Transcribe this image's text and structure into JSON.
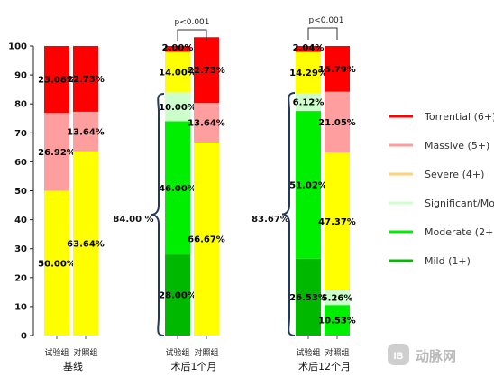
{
  "chart_data": {
    "type": "bar",
    "stacked": true,
    "ylim": [
      0,
      100
    ],
    "yticks": [
      0,
      10,
      20,
      30,
      40,
      50,
      60,
      70,
      80,
      90,
      100
    ],
    "groups": [
      {
        "label": "基线",
        "bars": [
          {
            "category": "试验组",
            "segments": [
              {
                "series": "Severe (4+)",
                "value": 50.0,
                "label": "50.00%"
              },
              {
                "series": "Massive (5+)",
                "value": 26.92,
                "label": "26.92%"
              },
              {
                "series": "Torrential (6+)",
                "value": 23.08,
                "label": "23.08%"
              }
            ]
          },
          {
            "category": "对照组",
            "segments": [
              {
                "series": "Severe (4+)",
                "value": 63.64,
                "label": "63.64%"
              },
              {
                "series": "Massive (5+)",
                "value": 13.64,
                "label": "13.64%"
              },
              {
                "series": "Torrential (6+)",
                "value": 22.73,
                "label": "22.73%"
              }
            ]
          }
        ]
      },
      {
        "label": "术后1个月",
        "p_value": "p<0.001",
        "brace_label": "84.00 %",
        "bars": [
          {
            "category": "试验组",
            "segments": [
              {
                "series": "Mild (1+)",
                "value": 28.0,
                "label": "28.00%"
              },
              {
                "series": "Moderate (2+)",
                "value": 46.0,
                "label": "46.00%"
              },
              {
                "series": "Significant/Moderate",
                "value": 10.0,
                "label": "10.00%"
              },
              {
                "series": "Severe (4+)",
                "value": 14.0,
                "label": "14.00%"
              },
              {
                "series": "Torrential (6+)",
                "value": 2.0,
                "label": "2.00%"
              }
            ]
          },
          {
            "category": "对照组",
            "segments": [
              {
                "series": "Severe (4+)",
                "value": 66.67,
                "label": "66.67%"
              },
              {
                "series": "Massive (5+)",
                "value": 13.64,
                "label": "13.64%"
              },
              {
                "series": "Torrential (6+)",
                "value": 22.73,
                "label": "22.73%"
              }
            ]
          }
        ]
      },
      {
        "label": "术后12个月",
        "p_value": "p<0.001",
        "brace_label": "83.67%",
        "bars": [
          {
            "category": "试验组",
            "segments": [
              {
                "series": "Mild (1+)",
                "value": 26.53,
                "label": "26.53%"
              },
              {
                "series": "Moderate (2+)",
                "value": 51.02,
                "label": "51.02%"
              },
              {
                "series": "Significant/Moderate",
                "value": 6.12,
                "label": "6.12%"
              },
              {
                "series": "Severe (4+)",
                "value": 14.29,
                "label": "14.29%"
              },
              {
                "series": "Torrential (6+)",
                "value": 2.04,
                "label": "2.04%"
              }
            ]
          },
          {
            "category": "对照组",
            "segments": [
              {
                "series": "Moderate (2+)",
                "value": 10.53,
                "label": "10.53%"
              },
              {
                "series": "Significant/Moderate",
                "value": 5.26,
                "label": "5.26%"
              },
              {
                "series": "Severe (4+)",
                "value": 47.37,
                "label": "47.37%"
              },
              {
                "series": "Massive (5+)",
                "value": 21.05,
                "label": "21.05%"
              },
              {
                "series": "Torrential (6+)",
                "value": 15.79,
                "label": "15.79%"
              }
            ]
          }
        ]
      }
    ],
    "legend": {
      "position": "right",
      "items": [
        {
          "name": "Torrential (6+)",
          "color": "#ff0000"
        },
        {
          "name": "Massive (5+)",
          "color": "#ff9c9c"
        },
        {
          "name": "Severe (4+)",
          "color": "#ffd27a"
        },
        {
          "name": "Significant/Moderate",
          "color": "#ccffcc"
        },
        {
          "name": "Moderate (2+)",
          "color": "#00ee00"
        },
        {
          "name": "Mild (1+)",
          "color": "#00bb00"
        }
      ]
    },
    "segment_colors": {
      "Torrential (6+)": "#ff0000",
      "Massive (5+)": "#ff9e9e",
      "Severe (4+)": "#ffff00",
      "Significant/Moderate": "#ccffcc",
      "Moderate (2+)": "#00ee00",
      "Mild (1+)": "#00b800"
    }
  },
  "watermark": {
    "text": "动脉网",
    "icon": "logo-icon"
  }
}
